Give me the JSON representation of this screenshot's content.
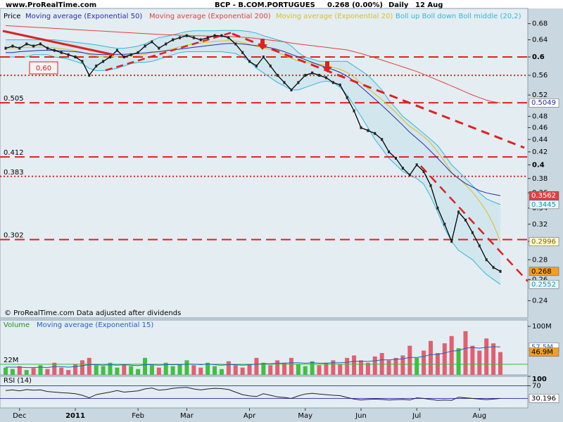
{
  "header": {
    "site": "www.ProRealTime.com",
    "title": "BCP - B.COM.PORTUGUES",
    "quote": "0.268 (0.00%)",
    "period": "Daily",
    "date": "12 Aug"
  },
  "footer": "© ProRealTime.com  Data adjusted after dividends",
  "chart_data": [
    {
      "type": "price",
      "log_scale": true,
      "categories": [
        null,
        null,
        "Dec",
        null,
        null,
        null,
        null,
        null,
        null,
        null,
        "2011",
        null,
        null,
        null,
        null,
        null,
        null,
        null,
        null,
        "Feb",
        null,
        null,
        null,
        null,
        null,
        null,
        "Mar",
        null,
        null,
        null,
        null,
        null,
        null,
        null,
        null,
        "Apr",
        null,
        null,
        null,
        null,
        null,
        null,
        null,
        "May",
        null,
        null,
        null,
        null,
        null,
        null,
        null,
        "Jun",
        null,
        null,
        null,
        null,
        null,
        null,
        null,
        "Jul",
        null,
        null,
        null,
        null,
        null,
        null,
        null,
        null,
        "Aug",
        null,
        null,
        null
      ],
      "ylim": [
        0.225,
        0.72
      ],
      "yticks": [
        0.68,
        0.64,
        0.6,
        0.56,
        0.52,
        0.48,
        0.46,
        0.44,
        0.42,
        0.4,
        0.38,
        0.36,
        0.34,
        0.32,
        0.3,
        0.28,
        0.26,
        0.24
      ],
      "levels": [
        {
          "value": 0.6,
          "style": "dashed",
          "label": "0,60"
        },
        {
          "value": 0.56,
          "style": "dotted"
        },
        {
          "value": 0.505,
          "style": "dashed",
          "label": "0.505"
        },
        {
          "value": 0.412,
          "style": "dashed",
          "label": "0.412"
        },
        {
          "value": 0.383,
          "style": "dotted",
          "label": "0.383"
        },
        {
          "value": 0.302,
          "style": "dashed",
          "label": "0.302"
        }
      ],
      "level_color": "#e02020",
      "band": {
        "name": "Boll up Boll down Boll middle (20,2)",
        "color": "#30b8d8",
        "fill": "#d2e6ee",
        "upper": [
          0.64,
          0.64,
          0.64,
          0.64,
          0.64,
          0.64,
          0.64,
          0.64,
          0.638,
          0.636,
          0.634,
          0.632,
          0.63,
          0.628,
          0.625,
          0.622,
          0.62,
          0.62,
          0.622,
          0.625,
          0.63,
          0.638,
          0.645,
          0.648,
          0.652,
          0.656,
          0.66,
          0.662,
          0.662,
          0.662,
          0.662,
          0.663,
          0.663,
          0.663,
          0.662,
          0.66,
          0.656,
          0.65,
          0.645,
          0.64,
          0.635,
          0.625,
          0.61,
          0.6,
          0.595,
          0.59,
          0.59,
          0.59,
          0.59,
          0.59,
          0.58,
          0.57,
          0.56,
          0.545,
          0.53,
          0.51,
          0.495,
          0.48,
          0.47,
          0.46,
          0.45,
          0.44,
          0.43,
          0.415,
          0.4,
          0.39,
          0.38,
          0.37,
          0.36,
          0.352,
          0.348,
          0.3445
        ],
        "lower": [
          0.6,
          0.6,
          0.6,
          0.6,
          0.605,
          0.605,
          0.605,
          0.6,
          0.598,
          0.595,
          0.59,
          0.585,
          0.575,
          0.57,
          0.57,
          0.572,
          0.575,
          0.58,
          0.585,
          0.588,
          0.588,
          0.59,
          0.595,
          0.6,
          0.605,
          0.61,
          0.612,
          0.612,
          0.612,
          0.612,
          0.612,
          0.612,
          0.61,
          0.608,
          0.6,
          0.59,
          0.575,
          0.565,
          0.555,
          0.545,
          0.538,
          0.53,
          0.53,
          0.535,
          0.54,
          0.545,
          0.548,
          0.545,
          0.535,
          0.52,
          0.5,
          0.48,
          0.46,
          0.44,
          0.425,
          0.41,
          0.4,
          0.39,
          0.385,
          0.38,
          0.372,
          0.355,
          0.335,
          0.315,
          0.3,
          0.29,
          0.285,
          0.28,
          0.272,
          0.265,
          0.26,
          0.2552
        ]
      },
      "series": [
        {
          "name": "Price",
          "color": "#000000",
          "box": "#f0a020",
          "values": [
            0.62,
            0.625,
            0.62,
            0.63,
            0.625,
            0.63,
            0.62,
            0.615,
            0.61,
            0.605,
            0.6,
            0.59,
            0.56,
            0.58,
            0.59,
            0.6,
            0.615,
            0.6,
            0.605,
            0.61,
            0.625,
            0.635,
            0.62,
            0.63,
            0.64,
            0.645,
            0.65,
            0.645,
            0.64,
            0.645,
            0.65,
            0.65,
            0.645,
            0.63,
            0.61,
            0.59,
            0.58,
            0.6,
            0.58,
            0.56,
            0.545,
            0.53,
            0.545,
            0.56,
            0.565,
            0.56,
            0.555,
            0.545,
            0.54,
            0.515,
            0.49,
            0.46,
            0.455,
            0.45,
            0.44,
            0.42,
            0.41,
            0.395,
            0.385,
            0.4,
            0.39,
            0.37,
            0.34,
            0.32,
            0.3,
            0.335,
            0.325,
            0.31,
            0.295,
            0.28,
            0.272,
            0.268
          ]
        },
        {
          "name": "Moving average (Exponential 50)",
          "color": "#2a2aa8",
          "values": [
            0.61,
            0.61,
            0.612,
            0.613,
            0.614,
            0.615,
            0.615,
            0.615,
            0.614,
            0.613,
            0.612,
            0.61,
            0.607,
            0.606,
            0.605,
            0.605,
            0.606,
            0.606,
            0.607,
            0.608,
            0.609,
            0.611,
            0.612,
            0.614,
            0.616,
            0.618,
            0.62,
            0.622,
            0.624,
            0.626,
            0.628,
            0.63,
            0.631,
            0.631,
            0.63,
            0.628,
            0.626,
            0.624,
            0.621,
            0.617,
            0.612,
            0.606,
            0.6,
            0.594,
            0.588,
            0.582,
            0.577,
            0.572,
            0.566,
            0.558,
            0.548,
            0.536,
            0.524,
            0.512,
            0.5,
            0.488,
            0.476,
            0.464,
            0.452,
            0.442,
            0.432,
            0.421,
            0.41,
            0.399,
            0.388,
            0.38,
            0.373,
            0.368,
            0.363,
            0.36,
            0.358,
            0.3562
          ]
        },
        {
          "name": "Moving average (Exponential 200)",
          "color": "#e04040",
          "values": [
            0.675,
            0.674,
            0.673,
            0.672,
            0.671,
            0.67,
            0.669,
            0.668,
            0.667,
            0.666,
            0.665,
            0.664,
            0.663,
            0.662,
            0.661,
            0.66,
            0.659,
            0.658,
            0.657,
            0.656,
            0.655,
            0.654,
            0.653,
            0.652,
            0.652,
            0.651,
            0.651,
            0.65,
            0.65,
            0.649,
            0.649,
            0.648,
            0.648,
            0.647,
            0.646,
            0.645,
            0.643,
            0.641,
            0.639,
            0.637,
            0.635,
            0.632,
            0.63,
            0.628,
            0.626,
            0.624,
            0.622,
            0.62,
            0.618,
            0.616,
            0.612,
            0.608,
            0.603,
            0.598,
            0.593,
            0.588,
            0.583,
            0.578,
            0.573,
            0.568,
            0.562,
            0.556,
            0.55,
            0.544,
            0.538,
            0.532,
            0.526,
            0.52,
            0.515,
            0.51,
            0.507,
            0.5049
          ]
        },
        {
          "name": "Moving average (Exponential 20)",
          "color": "#d8c020",
          "values": [
            0.62,
            0.621,
            0.621,
            0.622,
            0.622,
            0.623,
            0.622,
            0.621,
            0.619,
            0.617,
            0.614,
            0.611,
            0.605,
            0.602,
            0.6,
            0.6,
            0.602,
            0.602,
            0.602,
            0.603,
            0.606,
            0.61,
            0.612,
            0.615,
            0.619,
            0.623,
            0.627,
            0.63,
            0.632,
            0.634,
            0.636,
            0.637,
            0.638,
            0.637,
            0.634,
            0.629,
            0.624,
            0.621,
            0.617,
            0.611,
            0.604,
            0.597,
            0.591,
            0.588,
            0.586,
            0.584,
            0.581,
            0.577,
            0.573,
            0.566,
            0.556,
            0.544,
            0.533,
            0.522,
            0.511,
            0.499,
            0.487,
            0.474,
            0.462,
            0.454,
            0.445,
            0.434,
            0.42,
            0.405,
            0.389,
            0.38,
            0.371,
            0.361,
            0.349,
            0.336,
            0.32,
            0.2996
          ]
        }
      ]
    },
    {
      "type": "volume",
      "title": "Volume",
      "ylim": [
        0,
        113
      ],
      "yticks": [
        {
          "value": 100,
          "label": "100M"
        }
      ],
      "up_color": "#40c040",
      "down_color": "#e06070",
      "levels": [
        {
          "value": 22,
          "label": "22M",
          "color": "#30c030"
        }
      ],
      "series": [
        {
          "name": "Volume",
          "box": "#f0a020",
          "last_label": "46.9M",
          "values": [
            15,
            12,
            18,
            10,
            14,
            20,
            12,
            25,
            15,
            10,
            22,
            30,
            35,
            20,
            18,
            25,
            15,
            22,
            18,
            12,
            35,
            20,
            15,
            25,
            18,
            22,
            30,
            20,
            15,
            25,
            18,
            12,
            28,
            20,
            15,
            22,
            35,
            25,
            20,
            30,
            25,
            35,
            22,
            18,
            28,
            20,
            25,
            30,
            22,
            35,
            40,
            30,
            25,
            38,
            45,
            30,
            35,
            40,
            60,
            35,
            50,
            70,
            45,
            65,
            80,
            55,
            90,
            60,
            50,
            75,
            65,
            46.9
          ]
        },
        {
          "name": "Moving average (Exponential 15)",
          "color": "#2060c0",
          "last_label": "57.5M",
          "values": [
            16,
            16,
            16,
            15,
            15,
            16,
            15,
            17,
            17,
            16,
            17,
            19,
            21,
            21,
            20,
            21,
            20,
            21,
            20,
            19,
            21,
            21,
            20,
            21,
            21,
            21,
            22,
            22,
            21,
            22,
            21,
            20,
            21,
            21,
            20,
            21,
            22,
            23,
            23,
            24,
            24,
            25,
            25,
            24,
            25,
            24,
            24,
            25,
            25,
            26,
            28,
            28,
            28,
            29,
            31,
            31,
            32,
            33,
            36,
            36,
            38,
            42,
            42,
            45,
            49,
            50,
            55,
            56,
            55,
            57,
            58,
            57.5
          ]
        }
      ]
    },
    {
      "type": "rsi",
      "title": "RSI (14)",
      "ylim": [
        0,
        100
      ],
      "yticks": [
        100,
        70
      ],
      "levels": [
        70,
        30
      ],
      "level_color": "#4040c0",
      "series": [
        {
          "name": "RSI (14)",
          "color": "#202020",
          "values": [
            55,
            57,
            54,
            58,
            56,
            57,
            52,
            50,
            48,
            47,
            45,
            40,
            32,
            42,
            46,
            50,
            55,
            50,
            52,
            54,
            60,
            63,
            56,
            58,
            62,
            64,
            65,
            60,
            57,
            60,
            62,
            61,
            58,
            50,
            42,
            38,
            36,
            45,
            40,
            35,
            33,
            30,
            38,
            44,
            46,
            44,
            42,
            40,
            39,
            33,
            28,
            25,
            27,
            28,
            27,
            25,
            26,
            27,
            25,
            32,
            30,
            27,
            24,
            25,
            24,
            34,
            32,
            30,
            28,
            26,
            28,
            30.196
          ]
        }
      ]
    }
  ]
}
